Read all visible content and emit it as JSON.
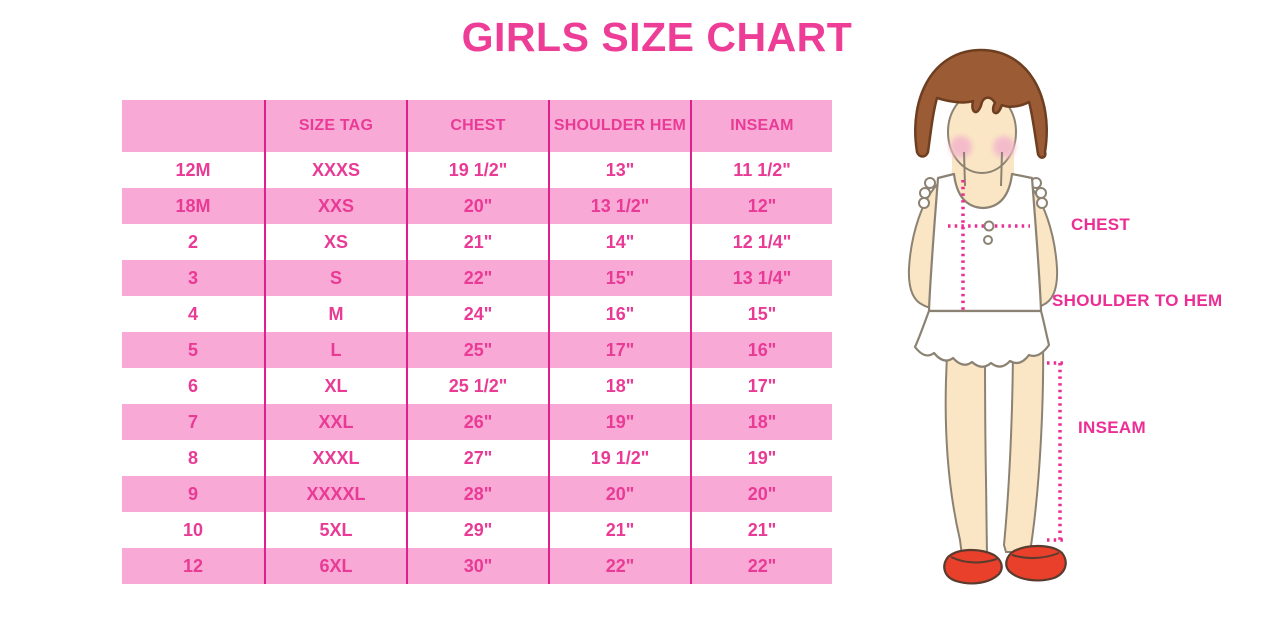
{
  "title": "GIRLS SIZE CHART",
  "table": {
    "headers": [
      "",
      "SIZE TAG",
      "CHEST",
      "SHOULDER HEM",
      "INSEAM"
    ],
    "rows": [
      [
        "12M",
        "XXXS",
        "19 1/2\"",
        "13\"",
        "11 1/2\""
      ],
      [
        "18M",
        "XXS",
        "20\"",
        "13 1/2\"",
        "12\""
      ],
      [
        "2",
        "XS",
        "21\"",
        "14\"",
        "12 1/4\""
      ],
      [
        "3",
        "S",
        "22\"",
        "15\"",
        "13 1/4\""
      ],
      [
        "4",
        "M",
        "24\"",
        "16\"",
        "15\""
      ],
      [
        "5",
        "L",
        "25\"",
        "17\"",
        "16\""
      ],
      [
        "6",
        "XL",
        "25 1/2\"",
        "18\"",
        "17\""
      ],
      [
        "7",
        "XXL",
        "26\"",
        "19\"",
        "18\""
      ],
      [
        "8",
        "XXXL",
        "27\"",
        "19 1/2\"",
        "19\""
      ],
      [
        "9",
        "XXXXL",
        "28\"",
        "20\"",
        "20\""
      ],
      [
        "10",
        "5XL",
        "29\"",
        "21\"",
        "21\""
      ],
      [
        "12",
        "6XL",
        "30\"",
        "22\"",
        "22\""
      ]
    ]
  },
  "figure": {
    "labels": {
      "chest": "CHEST",
      "shoulder_to_hem": "SHOULDER TO HEM",
      "inseam": "INSEAM"
    }
  },
  "colors": {
    "title_pink": "#EE3D96",
    "cell_text_pink": "#E93A95",
    "row_band_pink": "#F9A9D6",
    "divider_pink": "#DF1F8C",
    "measure_pink": "#EC2E94",
    "hair_brown": "#9A5B35",
    "skin": "#FAE6C4",
    "blush": "#F4BCCB",
    "shoe_red": "#E8402B"
  }
}
